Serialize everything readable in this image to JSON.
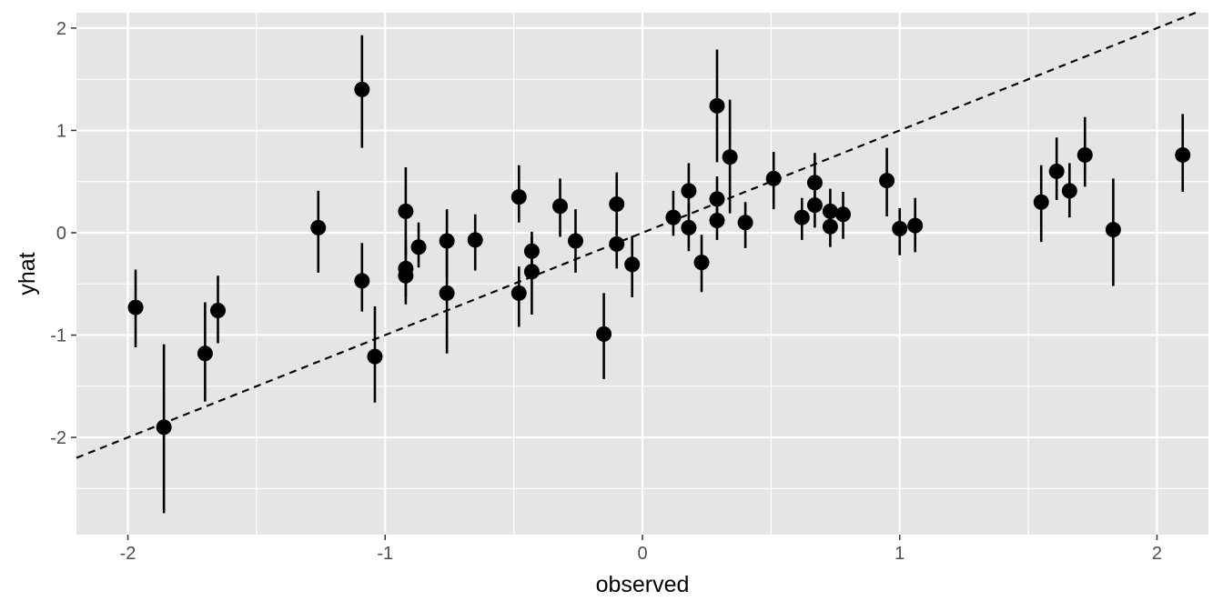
{
  "chart_data": {
    "type": "scatter",
    "title": "",
    "xlabel": "observed",
    "ylabel": "yhat",
    "xlim": [
      -2.2,
      2.2
    ],
    "ylim": [
      -2.95,
      2.15
    ],
    "x_ticks": [
      -2,
      -1,
      0,
      1,
      2
    ],
    "y_ticks": [
      -2,
      -1,
      0,
      1,
      2
    ],
    "x_tick_labels": [
      "-2",
      "-1",
      "0",
      "1",
      "2"
    ],
    "y_tick_labels": [
      "-2",
      "-1",
      "0",
      "1",
      "2"
    ],
    "grid": true,
    "reference_line": {
      "slope": 1,
      "intercept": 0,
      "style": "dashed"
    },
    "colors": {
      "panel": "#e5e5e5",
      "grid": "#ffffff",
      "points": "#000000",
      "tick_text": "#4d4d4d",
      "axis_title": "#000000"
    },
    "points": [
      {
        "x": -1.97,
        "y": -0.73,
        "ymin": -1.12,
        "ymax": -0.36
      },
      {
        "x": -1.86,
        "y": -1.9,
        "ymin": -2.74,
        "ymax": -1.09
      },
      {
        "x": -1.7,
        "y": -1.18,
        "ymin": -1.65,
        "ymax": -0.68
      },
      {
        "x": -1.65,
        "y": -0.76,
        "ymin": -1.08,
        "ymax": -0.42
      },
      {
        "x": -1.26,
        "y": 0.05,
        "ymin": -0.39,
        "ymax": 0.41
      },
      {
        "x": -1.09,
        "y": 1.4,
        "ymin": 0.83,
        "ymax": 1.93
      },
      {
        "x": -1.09,
        "y": -0.47,
        "ymin": -0.77,
        "ymax": -0.1
      },
      {
        "x": -1.04,
        "y": -1.21,
        "ymin": -1.66,
        "ymax": -0.72
      },
      {
        "x": -0.92,
        "y": 0.21,
        "ymin": -0.22,
        "ymax": 0.64
      },
      {
        "x": -0.92,
        "y": -0.35,
        "ymin": -0.63,
        "ymax": -0.07
      },
      {
        "x": -0.92,
        "y": -0.42,
        "ymin": -0.7,
        "ymax": -0.14
      },
      {
        "x": -0.87,
        "y": -0.14,
        "ymin": -0.34,
        "ymax": 0.1
      },
      {
        "x": -0.76,
        "y": -0.08,
        "ymin": -0.44,
        "ymax": 0.23
      },
      {
        "x": -0.76,
        "y": -0.59,
        "ymin": -1.18,
        "ymax": -0.05
      },
      {
        "x": -0.65,
        "y": -0.07,
        "ymin": -0.37,
        "ymax": 0.18
      },
      {
        "x": -0.48,
        "y": 0.35,
        "ymin": 0.1,
        "ymax": 0.66
      },
      {
        "x": -0.48,
        "y": -0.59,
        "ymin": -0.92,
        "ymax": -0.33
      },
      {
        "x": -0.43,
        "y": -0.18,
        "ymin": -0.42,
        "ymax": 0.01
      },
      {
        "x": -0.43,
        "y": -0.38,
        "ymin": -0.8,
        "ymax": -0.04
      },
      {
        "x": -0.32,
        "y": 0.26,
        "ymin": -0.04,
        "ymax": 0.53
      },
      {
        "x": -0.26,
        "y": -0.08,
        "ymin": -0.39,
        "ymax": 0.23
      },
      {
        "x": -0.15,
        "y": -0.99,
        "ymin": -1.43,
        "ymax": -0.59
      },
      {
        "x": -0.1,
        "y": 0.28,
        "ymin": -0.03,
        "ymax": 0.59
      },
      {
        "x": -0.1,
        "y": -0.11,
        "ymin": -0.35,
        "ymax": 0.17
      },
      {
        "x": -0.04,
        "y": -0.31,
        "ymin": -0.63,
        "ymax": -0.03
      },
      {
        "x": 0.12,
        "y": 0.15,
        "ymin": -0.03,
        "ymax": 0.41
      },
      {
        "x": 0.18,
        "y": 0.41,
        "ymin": 0.15,
        "ymax": 0.68
      },
      {
        "x": 0.18,
        "y": 0.05,
        "ymin": -0.18,
        "ymax": 0.28
      },
      {
        "x": 0.23,
        "y": -0.29,
        "ymin": -0.58,
        "ymax": -0.02
      },
      {
        "x": 0.29,
        "y": 1.24,
        "ymin": 0.69,
        "ymax": 1.79
      },
      {
        "x": 0.29,
        "y": 0.33,
        "ymin": 0.12,
        "ymax": 0.55
      },
      {
        "x": 0.29,
        "y": 0.12,
        "ymin": -0.07,
        "ymax": 0.33
      },
      {
        "x": 0.34,
        "y": 0.74,
        "ymin": 0.19,
        "ymax": 1.3
      },
      {
        "x": 0.4,
        "y": 0.1,
        "ymin": -0.15,
        "ymax": 0.3
      },
      {
        "x": 0.51,
        "y": 0.53,
        "ymin": 0.23,
        "ymax": 0.79
      },
      {
        "x": 0.62,
        "y": 0.15,
        "ymin": -0.07,
        "ymax": 0.34
      },
      {
        "x": 0.67,
        "y": 0.49,
        "ymin": 0.23,
        "ymax": 0.78
      },
      {
        "x": 0.67,
        "y": 0.27,
        "ymin": 0.05,
        "ymax": 0.48
      },
      {
        "x": 0.73,
        "y": 0.21,
        "ymin": 0.02,
        "ymax": 0.43
      },
      {
        "x": 0.73,
        "y": 0.06,
        "ymin": -0.14,
        "ymax": 0.27
      },
      {
        "x": 0.78,
        "y": 0.18,
        "ymin": -0.06,
        "ymax": 0.4
      },
      {
        "x": 0.95,
        "y": 0.51,
        "ymin": 0.16,
        "ymax": 0.83
      },
      {
        "x": 1.0,
        "y": 0.04,
        "ymin": -0.22,
        "ymax": 0.24
      },
      {
        "x": 1.06,
        "y": 0.07,
        "ymin": -0.19,
        "ymax": 0.34
      },
      {
        "x": 1.55,
        "y": 0.3,
        "ymin": -0.09,
        "ymax": 0.66
      },
      {
        "x": 1.61,
        "y": 0.6,
        "ymin": 0.32,
        "ymax": 0.93
      },
      {
        "x": 1.66,
        "y": 0.41,
        "ymin": 0.15,
        "ymax": 0.68
      },
      {
        "x": 1.72,
        "y": 0.76,
        "ymin": 0.45,
        "ymax": 1.13
      },
      {
        "x": 1.83,
        "y": 0.03,
        "ymin": -0.52,
        "ymax": 0.53
      },
      {
        "x": 2.1,
        "y": 0.76,
        "ymin": 0.4,
        "ymax": 1.16
      }
    ]
  }
}
